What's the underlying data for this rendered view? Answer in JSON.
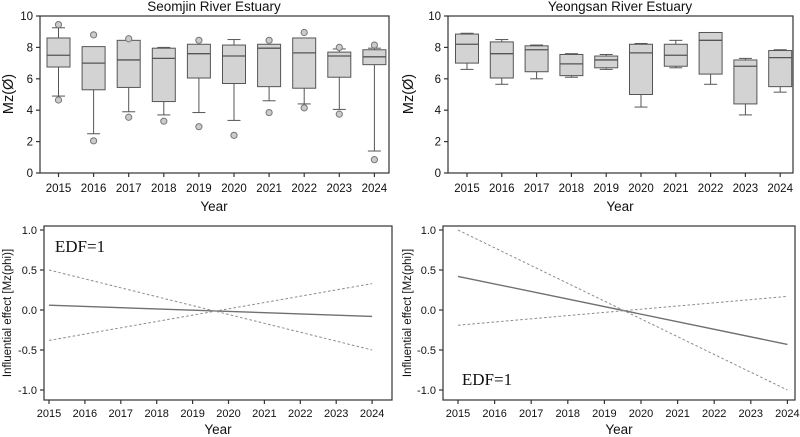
{
  "figure_title": "Estuary grain size box plots and GAM influential effects",
  "colors": {
    "background": "#ffffff",
    "frame": "#333333",
    "text": "#111111",
    "box_fill": "#d3d3d3",
    "box_stroke": "#555555",
    "whisker": "#555555",
    "outlier_fill": "#cbcbcb",
    "outlier_stroke": "#777777",
    "fit_line": "#707070",
    "ci_line": "#8c8c8c"
  },
  "chart_data": [
    {
      "type": "box",
      "title": "Seomjin River Estuary",
      "xlabel": "Year",
      "ylabel": "Mz(Ø)",
      "ylim": [
        0,
        10
      ],
      "yticks": [
        "0",
        "2",
        "4",
        "6",
        "8",
        "10"
      ],
      "categories": [
        "2015",
        "2016",
        "2017",
        "2018",
        "2019",
        "2020",
        "2021",
        "2022",
        "2023",
        "2024"
      ],
      "boxes": [
        {
          "category": "2015",
          "q1": 6.75,
          "median": 7.5,
          "q3": 8.6,
          "whisker_low": 4.9,
          "whisker_high": 9.25,
          "outliers": [
            9.45,
            4.65
          ]
        },
        {
          "category": "2016",
          "q1": 5.3,
          "median": 7.0,
          "q3": 8.05,
          "whisker_low": 2.5,
          "outliers": [
            8.8,
            2.05
          ]
        },
        {
          "category": "2017",
          "q1": 5.45,
          "median": 7.2,
          "q3": 8.45,
          "whisker_low": 3.9,
          "outliers": [
            8.55,
            3.55
          ]
        },
        {
          "category": "2018",
          "q1": 4.55,
          "median": 7.3,
          "q3": 7.95,
          "whisker_low": 3.7,
          "whisker_high": 8.0,
          "outliers": [
            3.3
          ]
        },
        {
          "category": "2019",
          "q1": 6.05,
          "median": 7.6,
          "q3": 8.2,
          "whisker_low": 3.85,
          "outliers": [
            8.45,
            2.95
          ]
        },
        {
          "category": "2020",
          "q1": 5.7,
          "median": 7.45,
          "q3": 8.15,
          "whisker_low": 3.35,
          "whisker_high": 8.5,
          "outliers": [
            2.4
          ]
        },
        {
          "category": "2021",
          "q1": 5.5,
          "median": 7.95,
          "q3": 8.2,
          "whisker_low": 4.6,
          "outliers": [
            8.45,
            3.85
          ]
        },
        {
          "category": "2022",
          "q1": 5.4,
          "median": 7.65,
          "q3": 8.6,
          "whisker_low": 4.4,
          "outliers": [
            8.95,
            4.15
          ]
        },
        {
          "category": "2023",
          "q1": 6.1,
          "median": 7.45,
          "q3": 7.7,
          "whisker_low": 4.05,
          "whisker_high": 7.9,
          "outliers": [
            8.0,
            3.75
          ]
        },
        {
          "category": "2024",
          "q1": 6.9,
          "median": 7.4,
          "q3": 7.85,
          "whisker_low": 1.4,
          "whisker_high": 7.95,
          "outliers": [
            8.15,
            0.85
          ]
        }
      ]
    },
    {
      "type": "box",
      "title": "Yeongsan River Estuary",
      "xlabel": "Year",
      "ylabel": "Mz(Ø)",
      "ylim": [
        0,
        10
      ],
      "yticks": [
        "0",
        "2",
        "4",
        "6",
        "8",
        "10"
      ],
      "categories": [
        "2015",
        "2016",
        "2017",
        "2018",
        "2019",
        "2020",
        "2021",
        "2022",
        "2023",
        "2024"
      ],
      "boxes": [
        {
          "category": "2015",
          "q1": 7.0,
          "median": 8.2,
          "q3": 8.85,
          "whisker_low": 6.6,
          "whisker_high": 8.9,
          "outliers": []
        },
        {
          "category": "2016",
          "q1": 6.05,
          "median": 7.6,
          "q3": 8.35,
          "whisker_low": 5.65,
          "whisker_high": 8.5,
          "outliers": []
        },
        {
          "category": "2017",
          "q1": 6.45,
          "median": 7.85,
          "q3": 8.1,
          "whisker_low": 6.0,
          "whisker_high": 8.15,
          "outliers": []
        },
        {
          "category": "2018",
          "q1": 6.2,
          "median": 6.95,
          "q3": 7.55,
          "whisker_low": 6.1,
          "whisker_high": 7.6,
          "outliers": []
        },
        {
          "category": "2019",
          "q1": 6.7,
          "median": 7.2,
          "q3": 7.45,
          "whisker_low": 6.6,
          "whisker_high": 7.55,
          "outliers": []
        },
        {
          "category": "2020",
          "q1": 5.0,
          "median": 7.65,
          "q3": 8.2,
          "whisker_low": 4.2,
          "whisker_high": 8.25,
          "outliers": []
        },
        {
          "category": "2021",
          "q1": 6.8,
          "median": 7.5,
          "q3": 8.2,
          "whisker_low": 6.7,
          "whisker_high": 8.45,
          "outliers": []
        },
        {
          "category": "2022",
          "q1": 6.3,
          "median": 8.45,
          "q3": 8.95,
          "whisker_low": 5.65,
          "outliers": []
        },
        {
          "category": "2023",
          "q1": 4.4,
          "median": 6.8,
          "q3": 7.2,
          "whisker_low": 3.7,
          "whisker_high": 7.3,
          "outliers": []
        },
        {
          "category": "2024",
          "q1": 5.5,
          "median": 7.35,
          "q3": 7.8,
          "whisker_low": 5.15,
          "whisker_high": 7.85,
          "outliers": []
        }
      ]
    },
    {
      "type": "line",
      "title": "",
      "xlabel": "Year",
      "ylabel": "Influential effect [Mz(phi)]",
      "annotation": "EDF=1",
      "annotation_position": "top-left",
      "ylim": [
        -1,
        1
      ],
      "yticks": [
        "-1.0",
        "-0.5",
        "0.0",
        "0.5",
        "1.0"
      ],
      "xticks": [
        "2015",
        "2016",
        "2017",
        "2018",
        "2019",
        "2020",
        "2021",
        "2022",
        "2023",
        "2024"
      ],
      "series": [
        {
          "name": "gam-fit",
          "style": "solid",
          "x": [
            2015,
            2024
          ],
          "y": [
            0.06,
            -0.08
          ]
        },
        {
          "name": "ci-band-a",
          "style": "dashed",
          "x": [
            2015,
            2024
          ],
          "y": [
            0.5,
            -0.5
          ]
        },
        {
          "name": "ci-band-b",
          "style": "dashed",
          "x": [
            2015,
            2024
          ],
          "y": [
            -0.38,
            0.33
          ]
        }
      ]
    },
    {
      "type": "line",
      "title": "",
      "xlabel": "Year",
      "ylabel": "Influential effect [Mz(phi)]",
      "annotation": "EDF=1",
      "annotation_position": "bottom-left",
      "ylim": [
        -1,
        1
      ],
      "yticks": [
        "-1.0",
        "-0.5",
        "0.0",
        "0.5",
        "1.0"
      ],
      "xticks": [
        "2015",
        "2016",
        "2017",
        "2018",
        "2019",
        "2020",
        "2021",
        "2022",
        "2023",
        "2024"
      ],
      "series": [
        {
          "name": "gam-fit",
          "style": "solid",
          "x": [
            2015,
            2024
          ],
          "y": [
            0.42,
            -0.43
          ]
        },
        {
          "name": "ci-band-a",
          "style": "dashed",
          "x": [
            2015,
            2024
          ],
          "y": [
            1.0,
            -1.0
          ]
        },
        {
          "name": "ci-band-b",
          "style": "dashed",
          "x": [
            2015,
            2024
          ],
          "y": [
            -0.19,
            0.17
          ]
        }
      ]
    }
  ]
}
